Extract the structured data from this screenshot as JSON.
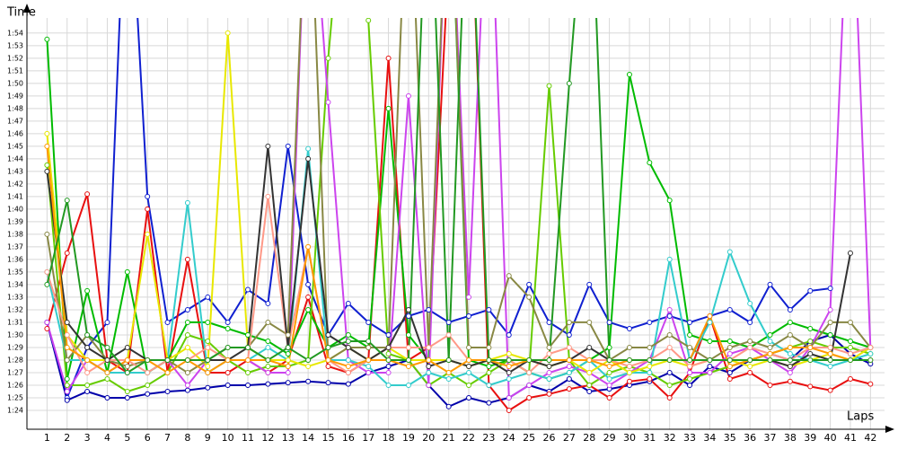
{
  "chart_data": {
    "type": "line",
    "y_label": "Time",
    "x_label": "Laps",
    "x": [
      1,
      2,
      3,
      4,
      5,
      6,
      7,
      8,
      9,
      10,
      11,
      12,
      13,
      14,
      15,
      16,
      17,
      18,
      19,
      20,
      21,
      22,
      23,
      24,
      25,
      26,
      27,
      28,
      29,
      30,
      31,
      32,
      33,
      34,
      35,
      36,
      37,
      38,
      39,
      40,
      41,
      42
    ],
    "xlim": [
      0,
      42.7
    ],
    "xticks": [
      1,
      2,
      3,
      4,
      5,
      6,
      7,
      8,
      9,
      10,
      11,
      12,
      13,
      14,
      15,
      16,
      17,
      18,
      19,
      20,
      21,
      22,
      23,
      24,
      25,
      26,
      27,
      28,
      29,
      30,
      31,
      32,
      33,
      34,
      35,
      36,
      37,
      38,
      39,
      40,
      41,
      42
    ],
    "ylim": [
      82.5,
      115.2
    ],
    "yticks": [
      {
        "value": 84,
        "label": "1:24"
      },
      {
        "value": 85,
        "label": "1:25"
      },
      {
        "value": 86,
        "label": "1:26"
      },
      {
        "value": 87,
        "label": "1:27"
      },
      {
        "value": 88,
        "label": "1:28"
      },
      {
        "value": 89,
        "label": "1:29"
      },
      {
        "value": 90,
        "label": "1:30"
      },
      {
        "value": 91,
        "label": "1:31"
      },
      {
        "value": 92,
        "label": "1:32"
      },
      {
        "value": 93,
        "label": "1:33"
      },
      {
        "value": 94,
        "label": "1:34"
      },
      {
        "value": 95,
        "label": "1:35"
      },
      {
        "value": 96,
        "label": "1:36"
      },
      {
        "value": 97,
        "label": "1:37"
      },
      {
        "value": 98,
        "label": "1:38"
      },
      {
        "value": 99,
        "label": "1:39"
      },
      {
        "value": 100,
        "label": "1:40"
      },
      {
        "value": 101,
        "label": "1:41"
      },
      {
        "value": 102,
        "label": "1:42"
      },
      {
        "value": 103,
        "label": "1:43"
      },
      {
        "value": 104,
        "label": "1:44"
      },
      {
        "value": 105,
        "label": "1:45"
      },
      {
        "value": 106,
        "label": "1:46"
      },
      {
        "value": 107,
        "label": "1:47"
      },
      {
        "value": 108,
        "label": "1:48"
      },
      {
        "value": 109,
        "label": "1:49"
      },
      {
        "value": 110,
        "label": "1:50"
      },
      {
        "value": 111,
        "label": "1:51"
      },
      {
        "value": 112,
        "label": "1:52"
      },
      {
        "value": 113,
        "label": "1:53"
      },
      {
        "value": 114,
        "label": "1:54"
      }
    ],
    "grid": true,
    "series": [
      {
        "color": "#1020d0",
        "values": [
          91,
          85,
          89,
          91,
          130,
          101,
          91,
          92,
          93,
          91,
          93.6,
          92.5,
          105,
          94,
          90,
          92.5,
          91,
          90,
          91.5,
          92,
          91,
          91.5,
          92,
          90,
          94,
          91,
          90,
          94,
          91,
          90.5,
          91,
          91.5,
          91,
          91.5,
          92,
          91,
          94,
          92,
          93.5,
          93.7,
          null,
          null
        ]
      },
      {
        "color": "#0000aa",
        "values": [
          91,
          84.8,
          85.5,
          85,
          85,
          85.3,
          85.5,
          85.6,
          85.8,
          86,
          86,
          86.1,
          86.2,
          86.3,
          86.2,
          86.1,
          87,
          87.5,
          88,
          86,
          84.3,
          85,
          84.6,
          85,
          86,
          85.5,
          86.5,
          85.5,
          85.7,
          86,
          86.3,
          87,
          86,
          87.5,
          87,
          88,
          88.5,
          88,
          89.5,
          90,
          88.5,
          87.7
        ]
      },
      {
        "color": "#e81010",
        "values": [
          90.5,
          96.5,
          101.2,
          88,
          87,
          100,
          87,
          96,
          87,
          87,
          88,
          87,
          88,
          93,
          87.5,
          87,
          88,
          112,
          88,
          89,
          120,
          130,
          86,
          84,
          85,
          85.3,
          85.7,
          86,
          85,
          86.3,
          86.5,
          85,
          87,
          91.5,
          86.5,
          87,
          86,
          86.3,
          85.9,
          85.6,
          86.5,
          86.1
        ]
      },
      {
        "color": "#00bb00",
        "values": [
          113.5,
          86.5,
          93.5,
          87,
          95,
          87,
          88,
          91,
          91,
          90.5,
          90,
          89.5,
          88.5,
          92,
          89,
          90,
          89,
          108,
          90,
          88,
          130,
          88,
          87.5,
          88,
          87,
          86.5,
          87,
          88,
          89,
          110.7,
          103.7,
          100.7,
          90,
          89.5,
          89.5,
          89,
          90,
          91,
          90.5,
          90,
          89.5,
          89
        ]
      },
      {
        "color": "#66cc00",
        "values": [
          103.5,
          86,
          86,
          86.5,
          85.5,
          86,
          87,
          90,
          89.5,
          88,
          87,
          87.5,
          87.5,
          88,
          112,
          130,
          115,
          88.5,
          88,
          86,
          87,
          86,
          87,
          88,
          87,
          109.8,
          88,
          86,
          87,
          87.5,
          87,
          86,
          86.5,
          87,
          87.5,
          88,
          88.5,
          89,
          89.5,
          89,
          89,
          88.5
        ]
      },
      {
        "color": "#cc44ee",
        "values": [
          91,
          85.5,
          88,
          87,
          88,
          88,
          88,
          86,
          88,
          88,
          88,
          87,
          87,
          130,
          108.5,
          88,
          87,
          87,
          109,
          86,
          130,
          93,
          130,
          85,
          86,
          87,
          87.5,
          87,
          86,
          87,
          88,
          92,
          87,
          87,
          88.5,
          89,
          88,
          87,
          89,
          92,
          130,
          89
        ]
      },
      {
        "color": "#33cccc",
        "values": [
          95,
          88,
          88,
          87,
          87,
          87,
          88,
          100.5,
          87,
          88,
          88,
          89,
          88,
          104.8,
          88,
          88,
          87.5,
          86,
          86,
          87,
          86.5,
          87,
          86,
          86.5,
          87,
          86.5,
          87,
          88,
          86.5,
          87,
          87,
          96,
          88,
          91,
          96.6,
          92.5,
          89.5,
          88.5,
          88,
          87.5,
          88,
          88.5
        ]
      },
      {
        "color": "#e8e800",
        "values": [
          106,
          90,
          88,
          88,
          88,
          98,
          88,
          89,
          87.5,
          114,
          89,
          88,
          88,
          87.5,
          88,
          89,
          88,
          89,
          88,
          88,
          88,
          87.5,
          88,
          88.5,
          88,
          87.5,
          88,
          87,
          88,
          87,
          87.5,
          88,
          87.5,
          88,
          88,
          87.5,
          88,
          87.5,
          88,
          88.5,
          88,
          89
        ]
      },
      {
        "color": "#888844",
        "values": [
          98,
          88,
          90,
          88,
          87.5,
          88,
          88,
          87,
          88,
          89,
          89,
          91,
          90,
          130,
          88,
          89,
          89,
          89,
          130,
          89,
          130,
          89,
          89,
          94.7,
          93,
          89,
          91,
          91,
          88,
          89,
          89,
          90,
          89,
          88,
          89,
          89.5,
          89,
          90,
          89,
          91,
          91,
          89
        ]
      },
      {
        "color": "#ff9988",
        "values": [
          95,
          90,
          87,
          88,
          88,
          87,
          88,
          88,
          89,
          88,
          88,
          101,
          89,
          97,
          88,
          87,
          88,
          89,
          89,
          89,
          90,
          88,
          88,
          88,
          87,
          88.5,
          89,
          88,
          88,
          87.5,
          88,
          89,
          87.5,
          88,
          88,
          89,
          88.5,
          88,
          89,
          89,
          88.5,
          89
        ]
      },
      {
        "color": "#333333",
        "values": [
          103,
          91,
          89,
          88,
          89,
          88,
          88,
          88,
          88,
          88,
          89,
          105,
          89,
          104,
          90,
          89,
          88,
          89,
          92,
          87.5,
          88,
          87.5,
          88,
          87,
          88,
          87.5,
          88,
          89,
          88,
          88,
          88,
          88,
          88,
          88,
          88,
          88,
          88,
          87.5,
          88.5,
          88,
          96.5,
          null
        ]
      },
      {
        "color": "#ff9900",
        "values": [
          105,
          89,
          88,
          87,
          88,
          88,
          87,
          88,
          87,
          88,
          88,
          88,
          87.5,
          97,
          88,
          87.5,
          88,
          88,
          87.5,
          88,
          87,
          88,
          88,
          87.5,
          88,
          88,
          88,
          88,
          87.5,
          88,
          88,
          88,
          88,
          91.5,
          87.5,
          88,
          88.5,
          89,
          89,
          88.5,
          88,
          88
        ]
      },
      {
        "color": "#229922",
        "values": [
          94,
          100.7,
          90,
          89,
          87,
          88,
          88,
          88,
          88,
          89,
          89,
          88,
          89,
          88,
          89,
          89.5,
          89.5,
          88,
          88,
          130,
          88,
          130,
          88,
          88,
          88,
          88,
          110,
          130,
          88,
          88,
          88,
          88,
          88,
          88,
          88,
          88,
          88,
          88,
          88,
          88,
          88,
          88
        ]
      }
    ]
  }
}
